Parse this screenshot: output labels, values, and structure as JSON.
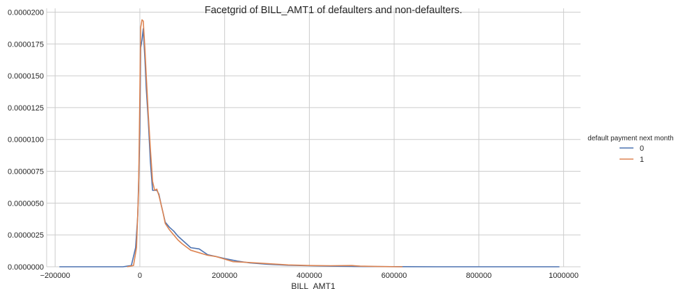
{
  "chart_data": {
    "type": "line",
    "title": "Facetgrid of BILL_AMT1 of defaulters and non-defaulters.",
    "xlabel": "BILL_AMT1",
    "ylabel": "",
    "xlim": [
      -220000,
      1040000
    ],
    "ylim": [
      0,
      2.03e-05
    ],
    "grid": true,
    "legend": {
      "title": "default payment next month",
      "placement": "right"
    },
    "x_ticks": [
      -200000,
      0,
      200000,
      400000,
      600000,
      800000,
      1000000
    ],
    "x_tick_labels": [
      "−200000",
      "0",
      "200000",
      "400000",
      "600000",
      "800000",
      "1000000"
    ],
    "y_ticks": [
      0,
      2.5e-06,
      5e-06,
      7.5e-06,
      1e-05,
      1.25e-05,
      1.5e-05,
      1.75e-05,
      2e-05
    ],
    "y_tick_labels": [
      "0.0000000",
      "0.0000025",
      "0.0000050",
      "0.0000075",
      "0.0000100",
      "0.0000125",
      "0.0000150",
      "0.0000175",
      "0.0000200"
    ],
    "series": [
      {
        "name": "0",
        "color": "#4c72b0",
        "x": [
          -190000,
          -100000,
          -40000,
          -20000,
          -10000,
          -5000,
          0,
          2000,
          5000,
          8000,
          12000,
          15000,
          20000,
          25000,
          30000,
          35000,
          40000,
          45000,
          50000,
          55000,
          60000,
          70000,
          80000,
          90000,
          100000,
          120000,
          140000,
          160000,
          180000,
          200000,
          230000,
          260000,
          300000,
          350000,
          400000,
          450000,
          500000,
          600000,
          700000,
          800000,
          900000,
          990000
        ],
        "y": [
          0,
          0,
          0,
          1e-07,
          1.5e-06,
          4e-06,
          1.05e-05,
          1.72e-05,
          1.78e-05,
          1.87e-05,
          1.63e-05,
          1.4e-05,
          1.14e-05,
          8.2e-06,
          6e-06,
          6e-06,
          6e-06,
          5.7e-06,
          4.9e-06,
          4.2e-06,
          3.5e-06,
          3.1e-06,
          2.8e-06,
          2.4e-06,
          2.1e-06,
          1.5e-06,
          1.4e-06,
          9.5e-07,
          8e-07,
          6.5e-07,
          4.5e-07,
          3e-07,
          2e-07,
          1.2e-07,
          8e-08,
          5e-08,
          3e-08,
          1e-08,
          0,
          0,
          0,
          0
        ]
      },
      {
        "name": "1",
        "color": "#dd8452",
        "x": [
          -30000,
          -15000,
          -8000,
          -3000,
          0,
          2000,
          5000,
          8000,
          12000,
          15000,
          20000,
          25000,
          30000,
          35000,
          40000,
          45000,
          50000,
          55000,
          60000,
          70000,
          80000,
          90000,
          100000,
          120000,
          140000,
          160000,
          180000,
          200000,
          220000,
          250000,
          300000,
          350000,
          400000,
          450000,
          500000,
          520000,
          560000,
          620000
        ],
        "y": [
          0,
          1e-07,
          1.5e-06,
          6e-06,
          1.35e-05,
          1.88e-05,
          1.94e-05,
          1.93e-05,
          1.71e-05,
          1.5e-05,
          1.19e-05,
          9.2e-06,
          6.7e-06,
          6e-06,
          6.1e-06,
          5.6e-06,
          4.9e-06,
          4.2e-06,
          3.4e-06,
          2.9e-06,
          2.5e-06,
          2.1e-06,
          1.8e-06,
          1.3e-06,
          1.1e-06,
          9e-07,
          8e-07,
          6e-07,
          4e-07,
          3.5e-07,
          2.5e-07,
          1.5e-07,
          1e-07,
          8e-08,
          1e-07,
          5e-08,
          2e-08,
          0
        ]
      }
    ]
  }
}
